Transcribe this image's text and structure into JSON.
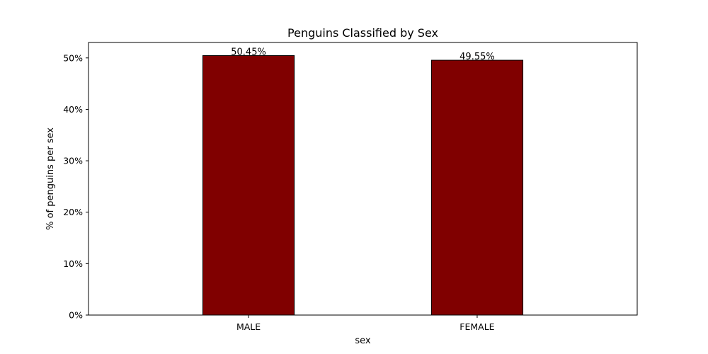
{
  "chart_data": {
    "type": "bar",
    "title": "Penguins Classified by Sex",
    "xlabel": "sex",
    "ylabel": "% of penguins per sex",
    "categories": [
      "MALE",
      "FEMALE"
    ],
    "values": [
      50.45,
      49.55
    ],
    "value_labels": [
      "50.45%",
      "49.55%"
    ],
    "ylim": [
      0,
      53
    ],
    "yticks": [
      0,
      10,
      20,
      30,
      40,
      50
    ],
    "ytick_labels": [
      "0%",
      "10%",
      "20%",
      "30%",
      "40%",
      "50%"
    ],
    "bar_color": "#800000",
    "edge_color": "#000000",
    "grid": false,
    "legend": false
  }
}
